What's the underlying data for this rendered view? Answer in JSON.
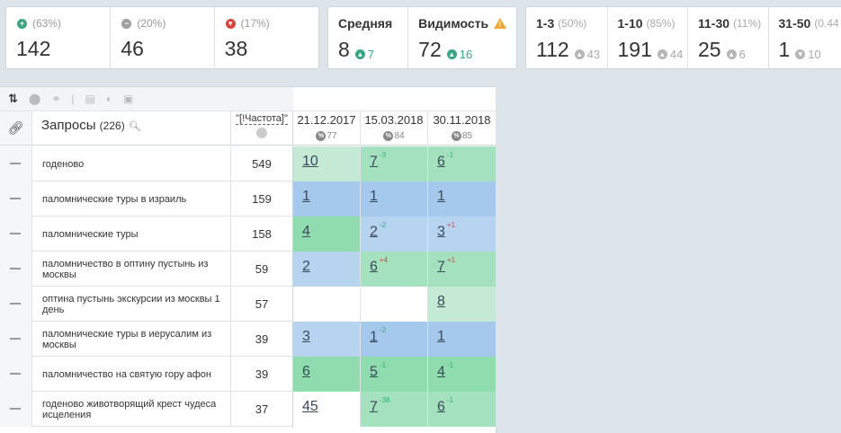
{
  "stats_group1": [
    {
      "pct": "(63%)",
      "value": "142",
      "icon": "plus-circle-icon",
      "color": "#35a882"
    },
    {
      "pct": "(20%)",
      "value": "46",
      "icon": "minus-circle-icon",
      "color": "#9e9e9e"
    },
    {
      "pct": "(17%)",
      "value": "38",
      "icon": "down-circle-icon",
      "color": "#e0403a"
    }
  ],
  "stats_group2": [
    {
      "label": "Средняя",
      "value": "8",
      "change": "7",
      "dir": "up-green"
    },
    {
      "label": "Видимость",
      "value": "72",
      "change": "16",
      "dir": "up-green",
      "warn": true
    }
  ],
  "stats_group3": [
    {
      "label": "1-3",
      "pct": "(50%)",
      "value": "112",
      "change": "43",
      "dir": "gray",
      "arrow": "▲"
    },
    {
      "label": "1-10",
      "pct": "(85%)",
      "value": "191",
      "change": "44",
      "dir": "gray",
      "arrow": "▲"
    },
    {
      "label": "11-30",
      "pct": "(11%)",
      "value": "25",
      "change": "6",
      "dir": "gray",
      "arrow": "▲"
    },
    {
      "label": "31-50",
      "pct": "(0.44",
      "value": "1",
      "change": "10",
      "dir": "gray",
      "arrow": "▼"
    }
  ],
  "table": {
    "queries_title": "Запросы",
    "queries_count": "(226)",
    "freq_header": "\"[!Частота]\"",
    "dates": [
      {
        "date": "21.12.2017",
        "pct": "77"
      },
      {
        "date": "15.03.2018",
        "pct": "84"
      },
      {
        "date": "30.11.2018",
        "pct": "85"
      }
    ],
    "rows": [
      {
        "query": "годеново",
        "freq": "549",
        "pos": [
          {
            "v": "10",
            "c": "g1"
          },
          {
            "v": "7",
            "d": "-3",
            "dc": "g",
            "c": "g2"
          },
          {
            "v": "6",
            "d": "-1",
            "dc": "g",
            "c": "g2"
          }
        ]
      },
      {
        "query": "паломнические туры в израиль",
        "freq": "159",
        "pos": [
          {
            "v": "1",
            "c": "b2"
          },
          {
            "v": "1",
            "c": "b2"
          },
          {
            "v": "1",
            "c": "b2"
          }
        ]
      },
      {
        "query": "паломнические туры",
        "freq": "158",
        "pos": [
          {
            "v": "4",
            "c": "g3"
          },
          {
            "v": "2",
            "d": "-2",
            "dc": "g",
            "c": "b1"
          },
          {
            "v": "3",
            "d": "+1",
            "dc": "r",
            "c": "b1"
          }
        ]
      },
      {
        "query": "паломничество в оптину пустынь из москвы",
        "freq": "59",
        "pos": [
          {
            "v": "2",
            "c": "b1"
          },
          {
            "v": "6",
            "d": "+4",
            "dc": "r",
            "c": "g2"
          },
          {
            "v": "7",
            "d": "+1",
            "dc": "r",
            "c": "g2"
          }
        ]
      },
      {
        "query": "оптина пустынь экскурсии из москвы 1 день",
        "freq": "57",
        "pos": [
          {
            "v": "",
            "c": "w"
          },
          {
            "v": "",
            "c": "w"
          },
          {
            "v": "8",
            "c": "g1"
          }
        ]
      },
      {
        "query": "паломнические туры в иерусалим из москвы",
        "freq": "39",
        "pos": [
          {
            "v": "3",
            "c": "b1"
          },
          {
            "v": "1",
            "d": "-2",
            "dc": "g",
            "c": "b2"
          },
          {
            "v": "1",
            "c": "b2"
          }
        ]
      },
      {
        "query": "паломничество на святую гору афон",
        "freq": "39",
        "pos": [
          {
            "v": "6",
            "c": "g3"
          },
          {
            "v": "5",
            "d": "-1",
            "dc": "g",
            "c": "g3"
          },
          {
            "v": "4",
            "d": "-1",
            "dc": "g",
            "c": "g3"
          }
        ]
      },
      {
        "query": "годеново животворящий крест чудеса исцеления",
        "freq": "37",
        "pos": [
          {
            "v": "45",
            "c": "w"
          },
          {
            "v": "7",
            "d": "-38",
            "dc": "g",
            "c": "g2"
          },
          {
            "v": "6",
            "d": "-1",
            "dc": "g",
            "c": "g2"
          }
        ]
      }
    ]
  }
}
